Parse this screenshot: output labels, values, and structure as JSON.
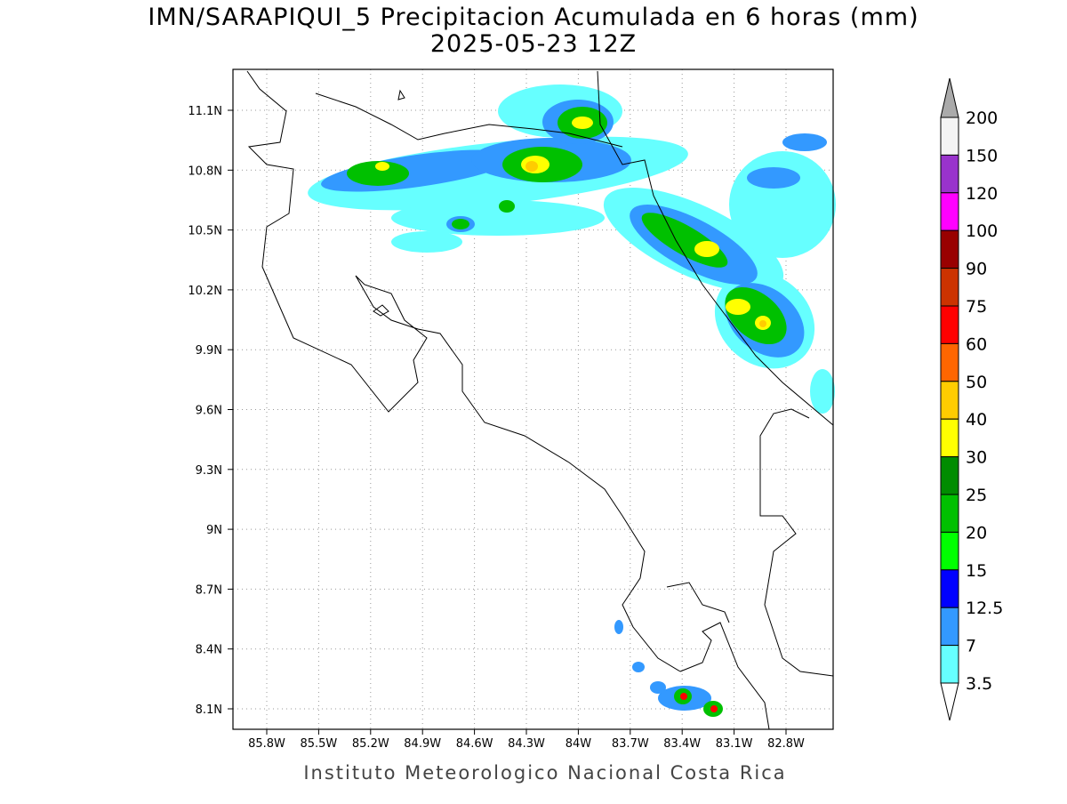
{
  "map": {
    "title": "IMN/SARAPIQUI_5 Precipitacion Acumulada en 6 horas (mm)",
    "subtitle": "2025-05-23 12Z",
    "lon_ticks": [
      "85.8W",
      "85.5W",
      "85.2W",
      "84.9W",
      "84.6W",
      "84.3W",
      "84W",
      "83.7W",
      "83.4W",
      "83.1W",
      "82.8W"
    ],
    "lat_ticks": [
      "11.1N",
      "10.8N",
      "10.5N",
      "10.2N",
      "9.9N",
      "9.6N",
      "9.3N",
      "9N",
      "8.7N",
      "8.4N",
      "8.1N"
    ]
  },
  "colorbar": {
    "labels": [
      "200",
      "150",
      "120",
      "100",
      "90",
      "75",
      "60",
      "50",
      "40",
      "30",
      "25",
      "20",
      "15",
      "12.5",
      "7",
      "3.5"
    ],
    "colors": [
      "#f4f4f4",
      "#9933cc",
      "#ff00ff",
      "#990000",
      "#cc3300",
      "#ff0000",
      "#ff6600",
      "#ffcc00",
      "#ffff00",
      "#008c00",
      "#00c000",
      "#00ff00",
      "#0000ff",
      "#3399ff",
      "#66ffff"
    ],
    "over_color": "#aaaaaa",
    "under_color": "#ffffff"
  },
  "footer": "Instituto Meteorologico Nacional Costa Rica"
}
